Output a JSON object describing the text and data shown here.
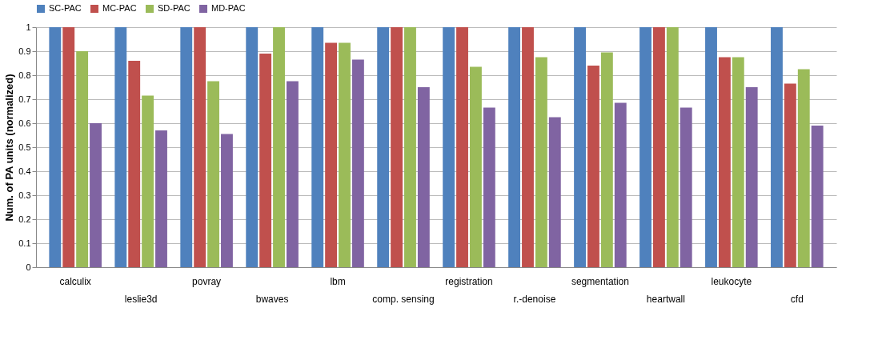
{
  "chart_data": {
    "type": "bar",
    "ylabel": "Num. of PA units (normalized)",
    "categories": [
      "calculix",
      "leslie3d",
      "povray",
      "bwaves",
      "lbm",
      "comp. sensing",
      "registration",
      "r.-denoise",
      "segmentation",
      "heartwall",
      "leukocyte",
      "cfd"
    ],
    "series": [
      {
        "name": "SC-PAC",
        "color": "#4f81bd",
        "values": [
          1,
          1,
          1,
          1,
          1,
          1,
          1,
          1,
          1,
          1,
          1,
          1
        ]
      },
      {
        "name": "MC-PAC",
        "color": "#c0504d",
        "values": [
          1,
          0.86,
          1,
          0.89,
          0.935,
          1,
          1,
          1,
          0.84,
          1,
          0.875,
          0.765
        ]
      },
      {
        "name": "SD-PAC",
        "color": "#9bbb59",
        "values": [
          0.9,
          0.715,
          0.775,
          1,
          0.935,
          1,
          0.835,
          0.875,
          0.895,
          1,
          0.875,
          0.825
        ]
      },
      {
        "name": "MD-PAC",
        "color": "#8064a2",
        "values": [
          0.6,
          0.57,
          0.555,
          0.775,
          0.865,
          0.75,
          0.665,
          0.625,
          0.685,
          0.665,
          0.75,
          0.59
        ]
      }
    ],
    "ylim": [
      0,
      1
    ],
    "yticks": [
      0,
      0.1,
      0.2,
      0.3,
      0.4,
      0.5,
      0.6,
      0.7,
      0.8,
      0.9,
      1
    ],
    "grid": "y",
    "legend": "top"
  }
}
